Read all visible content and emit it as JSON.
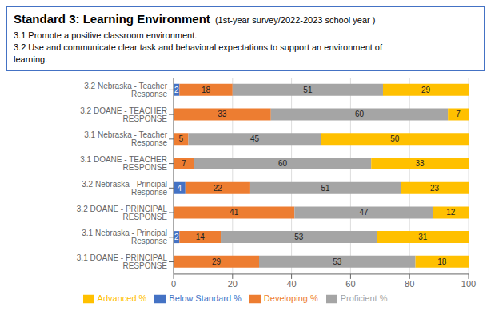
{
  "chart_data": {
    "type": "bar",
    "orientation": "horizontal",
    "stacked": true,
    "title": "Standard 3: Learning Environment",
    "subtitle": "(1st-year survey/2022-2023 school year )",
    "annotations": [
      "3.1 Promote a positive classroom environment.",
      "3.2 Use and communicate clear task and behavioral expectations to support an environment of",
      "learning."
    ],
    "categories": [
      "3.1 DOANE  - PRINCIPAL RESPONSE",
      "3.1 Nebraska - Principal Response",
      "3.2 DOANE  - PRINCIPAL RESPONSE",
      "3.2 Nebraska - Principal Response",
      "3.1 DOANE - TEACHER RESPONSE",
      "3.1 Nebraska - Teacher Response",
      "3.2 DOANE - TEACHER RESPONSE",
      "3.2 Nebraska - Teacher Response"
    ],
    "series": [
      {
        "name": "Below Standard %",
        "color": "#4472C4",
        "values": [
          0,
          2,
          0,
          4,
          0,
          0,
          0,
          2
        ]
      },
      {
        "name": "Developing %",
        "color": "#ED7D31",
        "values": [
          29,
          14,
          41,
          22,
          7,
          5,
          33,
          18
        ]
      },
      {
        "name": "Proficient %",
        "color": "#A5A5A5",
        "values": [
          53,
          53,
          47,
          51,
          60,
          45,
          60,
          51
        ]
      },
      {
        "name": "Advanced %",
        "color": "#FFC000",
        "values": [
          18,
          31,
          12,
          23,
          33,
          50,
          7,
          29
        ]
      }
    ],
    "xlim": [
      0,
      100
    ],
    "xticks": [
      0,
      20,
      40,
      60,
      80,
      100
    ],
    "grid": true,
    "data_labels": true,
    "legend": "bottom"
  }
}
